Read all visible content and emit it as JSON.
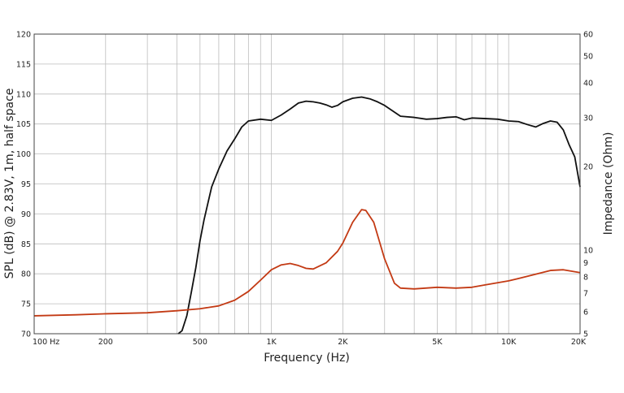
{
  "chart_data": {
    "type": "line",
    "xlabel": "Frequency (Hz)",
    "ylabel": "SPL (dB) @ 2.83V, 1m, half space",
    "ylabel_right": "Impedance (Ohm)",
    "xscale": "log",
    "xlim": [
      100,
      20000
    ],
    "ylim": [
      70,
      120
    ],
    "ylim_right": [
      5,
      60
    ],
    "yscale_right": "log",
    "grid": true,
    "x_tick_labels": [
      {
        "value": 100,
        "label": "100  Hz"
      },
      {
        "value": 200,
        "label": "200"
      },
      {
        "value": 500,
        "label": "500"
      },
      {
        "value": 1000,
        "label": "1K"
      },
      {
        "value": 2000,
        "label": "2K"
      },
      {
        "value": 5000,
        "label": "5K"
      },
      {
        "value": 10000,
        "label": "10K"
      },
      {
        "value": 20000,
        "label": "20K"
      }
    ],
    "y_ticks": [
      70,
      75,
      80,
      85,
      90,
      95,
      100,
      105,
      110,
      115,
      120
    ],
    "y_right_ticks": [
      {
        "value": 5,
        "label": "5"
      },
      {
        "value": 6,
        "label": "6"
      },
      {
        "value": 7,
        "label": "7"
      },
      {
        "value": 8,
        "label": "8"
      },
      {
        "value": 9,
        "label": "9"
      },
      {
        "value": 10,
        "label": "10"
      },
      {
        "value": 20,
        "label": "20"
      },
      {
        "value": 30,
        "label": "30"
      },
      {
        "value": 40,
        "label": "40"
      },
      {
        "value": 50,
        "label": "50"
      },
      {
        "value": 60,
        "label": "60"
      }
    ],
    "series": [
      {
        "axis": "left",
        "color": "#111111",
        "x": [
          405,
          420,
          440,
          460,
          480,
          500,
          520,
          560,
          600,
          650,
          700,
          750,
          800,
          900,
          1000,
          1100,
          1200,
          1300,
          1400,
          1500,
          1600,
          1700,
          1800,
          1900,
          2000,
          2200,
          2400,
          2600,
          2800,
          3000,
          3500,
          4000,
          4500,
          5000,
          5500,
          6000,
          6500,
          7000,
          8000,
          9000,
          10000,
          11000,
          12000,
          13000,
          14000,
          15000,
          16000,
          17000,
          18000,
          19000,
          20000
        ],
        "values": [
          70,
          70.5,
          73,
          77,
          81,
          85.5,
          89,
          94.5,
          97.5,
          100.5,
          102.5,
          104.5,
          105.5,
          105.8,
          105.6,
          106.5,
          107.5,
          108.5,
          108.8,
          108.7,
          108.5,
          108.2,
          107.8,
          108.1,
          108.7,
          109.3,
          109.5,
          109.2,
          108.7,
          108.1,
          106.3,
          106.1,
          105.8,
          105.9,
          106.1,
          106.2,
          105.7,
          106.0,
          105.9,
          105.8,
          105.5,
          105.4,
          104.9,
          104.5,
          105.1,
          105.5,
          105.3,
          104.0,
          101.5,
          99.5,
          94.5
        ]
      },
      {
        "axis": "right",
        "color": "#c33a14",
        "x": [
          100,
          150,
          200,
          300,
          400,
          500,
          600,
          700,
          800,
          900,
          1000,
          1100,
          1200,
          1300,
          1400,
          1500,
          1700,
          1900,
          2000,
          2200,
          2400,
          2500,
          2700,
          3000,
          3300,
          3500,
          4000,
          5000,
          6000,
          7000,
          8000,
          10000,
          12000,
          15000,
          17000,
          20000
        ],
        "values": [
          5.8,
          5.85,
          5.9,
          5.95,
          6.05,
          6.15,
          6.3,
          6.6,
          7.1,
          7.8,
          8.5,
          8.85,
          8.95,
          8.8,
          8.6,
          8.55,
          9.0,
          9.9,
          10.6,
          12.6,
          14.0,
          13.9,
          12.6,
          9.3,
          7.6,
          7.3,
          7.25,
          7.35,
          7.3,
          7.35,
          7.5,
          7.75,
          8.05,
          8.45,
          8.5,
          8.3
        ]
      }
    ]
  }
}
